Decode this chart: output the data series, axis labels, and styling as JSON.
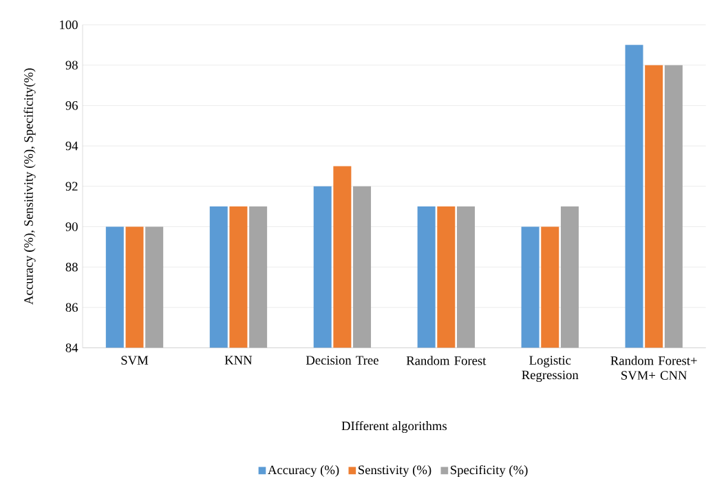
{
  "chart_data": {
    "type": "bar",
    "xlabel": "DIfferent algorithms",
    "ylabel": "Accuracy (%), Sensitivity (%), Specificity(%)",
    "categories": [
      "SVM",
      "KNN",
      "Decision Tree",
      "Random Forest",
      "Logistic Regression",
      "Random Forest+ SVM+ CNN"
    ],
    "series": [
      {
        "name": "Accuracy (%)",
        "color": "#5b9bd5",
        "values": [
          90,
          91,
          92,
          91,
          90,
          99
        ]
      },
      {
        "name": "Senstivity (%)",
        "color": "#ed7d31",
        "values": [
          90,
          91,
          93,
          91,
          90,
          98
        ]
      },
      {
        "name": "Specificity (%)",
        "color": "#a5a5a5",
        "values": [
          90,
          91,
          92,
          91,
          91,
          98
        ]
      }
    ],
    "ylim": [
      84,
      100
    ],
    "yticks": [
      84,
      86,
      88,
      90,
      92,
      94,
      96,
      98,
      100
    ],
    "grid": "y",
    "legend": "bottom"
  }
}
